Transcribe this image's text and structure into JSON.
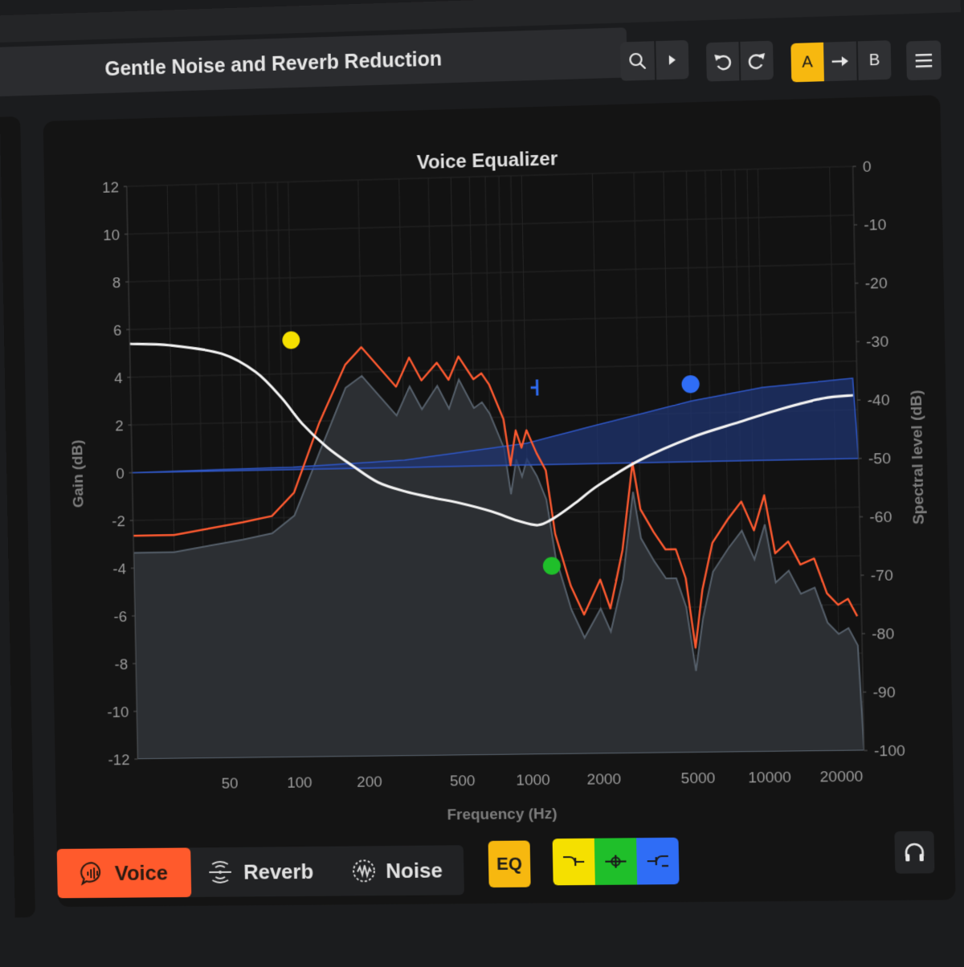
{
  "header": {
    "preset_name": "Gentle Noise and Reverb Reduction",
    "icons": {
      "search": "search-icon",
      "play": "play-icon",
      "undo": "undo-icon",
      "redo": "redo-icon",
      "menu": "menu-icon"
    },
    "compare": {
      "a_label": "A",
      "b_label": "B",
      "arrow_icon": "arrow-right-icon"
    }
  },
  "equalizer": {
    "title": "Voice Equalizer",
    "xlabel": "Frequency (Hz)",
    "ylabel_left": "Gain (dB)",
    "ylabel_right": "Spectral level (dB)"
  },
  "bottom": {
    "tabs": [
      {
        "label": "Voice",
        "icon": "voice-bubble-icon",
        "active": true
      },
      {
        "label": "Reverb",
        "icon": "reverb-waves-icon",
        "active": false
      },
      {
        "label": "Noise",
        "icon": "noise-circle-icon",
        "active": false
      }
    ],
    "eq_label": "EQ",
    "band_buttons": [
      {
        "icon": "low-shelf-icon",
        "color": "#f5e000"
      },
      {
        "icon": "bell-band-icon",
        "color": "#1fbf2a"
      },
      {
        "icon": "high-shelf-icon",
        "color": "#2f6df6"
      }
    ],
    "monitor_icon": "headphones-icon"
  },
  "colors": {
    "accent_orange": "#ff5a2c",
    "eq_yellow": "#f7b80f",
    "curve_white": "#f2f2f2",
    "spectrum_red": "#ff5a30",
    "high_shelf_blue": "#2f6df6"
  },
  "chart_data": {
    "type": "line",
    "title": "Voice Equalizer",
    "xlabel": "Frequency (Hz)",
    "ylabel": "Gain (dB)",
    "y2label": "Spectral level (dB)",
    "x_scale": "log",
    "xlim": [
      20,
      25000
    ],
    "ylim": [
      -12,
      12
    ],
    "y2lim": [
      -100,
      0
    ],
    "x_ticks": [
      50,
      100,
      200,
      500,
      1000,
      2000,
      5000,
      10000,
      20000
    ],
    "y_ticks": [
      12,
      10,
      8,
      6,
      4,
      2,
      0,
      -2,
      -4,
      -6,
      -8,
      -10,
      -12
    ],
    "y2_ticks": [
      0,
      -10,
      -20,
      -30,
      -40,
      -50,
      -60,
      -70,
      -80,
      -90,
      -100
    ],
    "grid": true,
    "series": [
      {
        "axis": "left",
        "x": [
          20,
          30,
          50,
          70,
          90,
          110,
          140,
          180,
          230,
          300,
          400,
          500,
          700,
          900,
          1100,
          1300,
          1600,
          2000,
          3000,
          5000,
          8000,
          12000,
          18000,
          24000
        ],
        "y": [
          5.4,
          5.3,
          4.9,
          4.1,
          3.0,
          1.9,
          0.9,
          0.1,
          -0.6,
          -1.0,
          -1.3,
          -1.5,
          -1.9,
          -2.3,
          -2.5,
          -2.2,
          -1.6,
          -0.9,
          0.1,
          1.0,
          1.6,
          2.1,
          2.5,
          2.6
        ]
      },
      {
        "axis": "right",
        "x": [
          20,
          30,
          60,
          80,
          100,
          130,
          170,
          200,
          280,
          320,
          360,
          420,
          470,
          520,
          600,
          650,
          700,
          800,
          850,
          900,
          950,
          1000,
          1100,
          1200,
          1300,
          1500,
          1700,
          2000,
          2200,
          2500,
          2800,
          3000,
          3400,
          3800,
          4200,
          4600,
          5000,
          5400,
          6000,
          7000,
          8000,
          9000,
          10000,
          11000,
          12500,
          14000,
          16000,
          18000,
          20000,
          22000,
          24000
        ],
        "y": [
          -61,
          -61,
          -59,
          -58,
          -54,
          -42,
          -32,
          -29,
          -36,
          -31,
          -35,
          -32,
          -35,
          -31,
          -35,
          -34,
          -36,
          -42,
          -50,
          -44,
          -47,
          -44,
          -48,
          -51,
          -62,
          -71,
          -76,
          -70,
          -75,
          -65,
          -50,
          -58,
          -62,
          -65,
          -65,
          -70,
          -82,
          -72,
          -64,
          -60,
          -57,
          -62,
          -56,
          -66,
          -64,
          -68,
          -67,
          -73,
          -75,
          -74,
          -77
        ]
      },
      {
        "axis": "right",
        "x": [
          20,
          30,
          60,
          80,
          100,
          130,
          170,
          200,
          280,
          320,
          360,
          420,
          470,
          520,
          600,
          650,
          700,
          800,
          850,
          900,
          950,
          1000,
          1100,
          1200,
          1300,
          1500,
          1700,
          2000,
          2200,
          2500,
          2800,
          3000,
          3400,
          3800,
          4200,
          4600,
          5000,
          5400,
          6000,
          7000,
          8000,
          9000,
          10000,
          11000,
          12500,
          14000,
          16000,
          18000,
          20000,
          22000,
          24000
        ],
        "y": [
          -64,
          -64,
          -62,
          -61,
          -58,
          -47,
          -36,
          -34,
          -41,
          -36,
          -40,
          -36,
          -40,
          -35,
          -40,
          -39,
          -41,
          -47,
          -55,
          -49,
          -52,
          -49,
          -52,
          -56,
          -66,
          -75,
          -80,
          -75,
          -79,
          -70,
          -55,
          -63,
          -67,
          -70,
          -70,
          -75,
          -86,
          -77,
          -69,
          -65,
          -62,
          -67,
          -61,
          -71,
          -69,
          -73,
          -72,
          -78,
          -80,
          -79,
          -82
        ]
      },
      {
        "axis": "left",
        "x": [
          20,
          100,
          300,
          1000,
          2000,
          5000,
          10000,
          24000
        ],
        "y": [
          0.0,
          0.1,
          0.3,
          0.9,
          1.6,
          2.5,
          3.0,
          3.3
        ]
      }
    ],
    "control_points": [
      {
        "band": "low-shelf",
        "freq": 100,
        "gain": 5.4,
        "color": "#f5e000"
      },
      {
        "band": "bell",
        "freq": 1250,
        "gain": -4.2,
        "color": "#1fbf2a"
      },
      {
        "band": "high-shelf",
        "freq": 5000,
        "gain": 3.2,
        "color": "#2f6df6"
      },
      {
        "band": "marker",
        "freq": 1120,
        "gain": 3.2,
        "color": "#2f6df6"
      }
    ]
  }
}
